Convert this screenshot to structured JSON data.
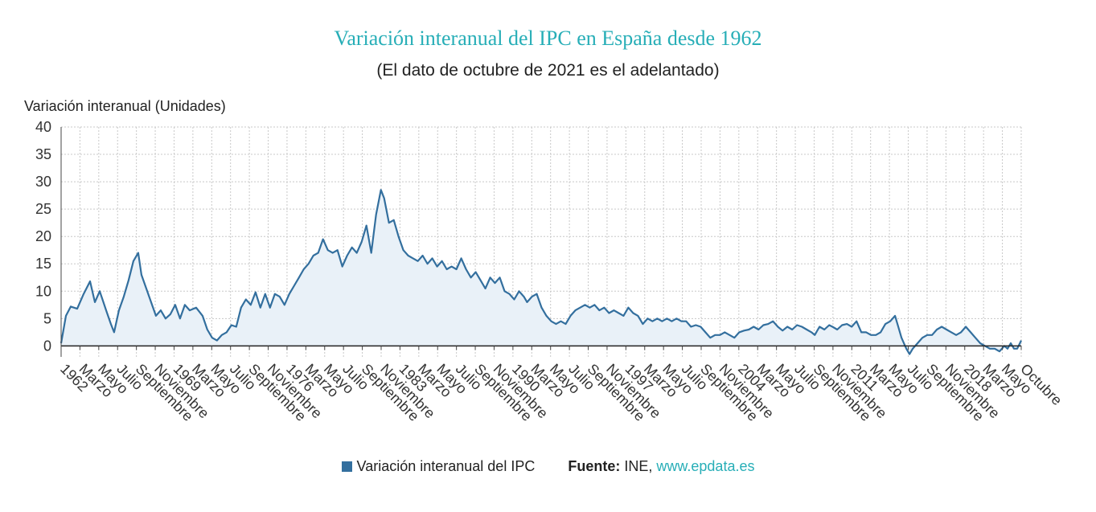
{
  "title": "Variación interanual del IPC en España desde 1962",
  "subtitle": "(El dato de octubre de 2021 es el adelantado)",
  "legend": {
    "series_label": "Variación interanual del IPC",
    "source_prefix": "Fuente:",
    "source_name": "INE,",
    "source_link": "www.epdata.es"
  },
  "colors": {
    "line": "#336f9e",
    "fill": "#e9f1f8",
    "title": "#27aeb7",
    "link": "#27aeb7",
    "grid": "#c8c8c8"
  },
  "chart_data": {
    "type": "area",
    "ylabel": "Variación interanual (Unidades)",
    "ylim": [
      -2,
      40
    ],
    "yticks": [
      0,
      5,
      10,
      15,
      20,
      25,
      30,
      35,
      40
    ],
    "xlim": [
      1962.0,
      2021.75
    ],
    "grid": true,
    "legend_position": "bottom",
    "xtick_labels": [
      "1962",
      "Marzo",
      "Mayo",
      "Julio",
      "Septiembre",
      "Noviembre",
      "1969",
      "Marzo",
      "Mayo",
      "Julio",
      "Septiembre",
      "Noviembre",
      "1976",
      "Marzo",
      "Mayo",
      "Julio",
      "Septiembre",
      "Noviembre",
      "1983",
      "Marzo",
      "Mayo",
      "Julio",
      "Septiembre",
      "Noviembre",
      "1990",
      "Marzo",
      "Mayo",
      "Julio",
      "Septiembre",
      "Noviembre",
      "1997",
      "Marzo",
      "Mayo",
      "Julio",
      "Septiembre",
      "Noviembre",
      "2004",
      "Marzo",
      "Mayo",
      "Julio",
      "Septiembre",
      "Noviembre",
      "2011",
      "Marzo",
      "Mayo",
      "Julio",
      "Septiembre",
      "Noviembre",
      "2018",
      "Marzo",
      "Mayo",
      "Octubre"
    ],
    "series": [
      {
        "name": "Variación interanual del IPC",
        "points": [
          [
            1962.0,
            0.5
          ],
          [
            1962.3,
            5.5
          ],
          [
            1962.6,
            7.2
          ],
          [
            1963.0,
            6.8
          ],
          [
            1963.4,
            9.5
          ],
          [
            1963.8,
            11.8
          ],
          [
            1964.1,
            8.0
          ],
          [
            1964.4,
            10.0
          ],
          [
            1964.8,
            6.5
          ],
          [
            1965.1,
            4.0
          ],
          [
            1965.3,
            2.5
          ],
          [
            1965.6,
            6.5
          ],
          [
            1965.9,
            9.0
          ],
          [
            1966.2,
            12.0
          ],
          [
            1966.5,
            15.5
          ],
          [
            1966.8,
            17.0
          ],
          [
            1967.0,
            13.0
          ],
          [
            1967.3,
            10.5
          ],
          [
            1967.6,
            8.0
          ],
          [
            1967.9,
            5.5
          ],
          [
            1968.2,
            6.5
          ],
          [
            1968.5,
            5.0
          ],
          [
            1968.8,
            5.8
          ],
          [
            1969.1,
            7.5
          ],
          [
            1969.4,
            5.0
          ],
          [
            1969.7,
            7.5
          ],
          [
            1970.0,
            6.5
          ],
          [
            1970.4,
            7.0
          ],
          [
            1970.8,
            5.5
          ],
          [
            1971.1,
            3.0
          ],
          [
            1971.4,
            1.5
          ],
          [
            1971.7,
            1.0
          ],
          [
            1972.0,
            2.0
          ],
          [
            1972.3,
            2.5
          ],
          [
            1972.6,
            3.8
          ],
          [
            1972.9,
            3.5
          ],
          [
            1973.2,
            7.0
          ],
          [
            1973.5,
            8.5
          ],
          [
            1973.8,
            7.5
          ],
          [
            1974.1,
            9.8
          ],
          [
            1974.4,
            7.0
          ],
          [
            1974.7,
            9.5
          ],
          [
            1975.0,
            7.0
          ],
          [
            1975.3,
            9.5
          ],
          [
            1975.6,
            9.0
          ],
          [
            1975.9,
            7.5
          ],
          [
            1976.2,
            9.5
          ],
          [
            1976.5,
            11.0
          ],
          [
            1976.8,
            12.5
          ],
          [
            1977.1,
            14.0
          ],
          [
            1977.4,
            15.0
          ],
          [
            1977.7,
            16.5
          ],
          [
            1978.0,
            17.0
          ],
          [
            1978.3,
            19.5
          ],
          [
            1978.6,
            17.5
          ],
          [
            1978.9,
            17.0
          ],
          [
            1979.2,
            17.5
          ],
          [
            1979.5,
            14.5
          ],
          [
            1979.8,
            16.5
          ],
          [
            1980.1,
            18.0
          ],
          [
            1980.4,
            17.0
          ],
          [
            1980.7,
            19.0
          ],
          [
            1981.0,
            22.0
          ],
          [
            1981.3,
            17.0
          ],
          [
            1981.6,
            24.0
          ],
          [
            1981.9,
            28.5
          ],
          [
            1982.1,
            27.0
          ],
          [
            1982.4,
            22.5
          ],
          [
            1982.7,
            23.0
          ],
          [
            1983.0,
            20.0
          ],
          [
            1983.3,
            17.5
          ],
          [
            1983.6,
            16.5
          ],
          [
            1983.9,
            16.0
          ],
          [
            1984.2,
            15.5
          ],
          [
            1984.5,
            16.5
          ],
          [
            1984.8,
            15.0
          ],
          [
            1985.1,
            16.0
          ],
          [
            1985.4,
            14.5
          ],
          [
            1985.7,
            15.5
          ],
          [
            1986.0,
            14.0
          ],
          [
            1986.3,
            14.5
          ],
          [
            1986.6,
            14.0
          ],
          [
            1986.9,
            16.0
          ],
          [
            1987.2,
            14.0
          ],
          [
            1987.5,
            12.5
          ],
          [
            1987.8,
            13.5
          ],
          [
            1988.1,
            12.0
          ],
          [
            1988.4,
            10.5
          ],
          [
            1988.7,
            12.5
          ],
          [
            1989.0,
            11.5
          ],
          [
            1989.3,
            12.5
          ],
          [
            1989.6,
            10.0
          ],
          [
            1989.9,
            9.5
          ],
          [
            1990.2,
            8.5
          ],
          [
            1990.5,
            10.0
          ],
          [
            1990.8,
            9.0
          ],
          [
            1991.0,
            8.0
          ],
          [
            1991.3,
            9.0
          ],
          [
            1991.6,
            9.5
          ],
          [
            1991.9,
            7.0
          ],
          [
            1992.2,
            5.5
          ],
          [
            1992.5,
            4.5
          ],
          [
            1992.8,
            4.0
          ],
          [
            1993.1,
            4.5
          ],
          [
            1993.4,
            4.0
          ],
          [
            1993.7,
            5.5
          ],
          [
            1994.0,
            6.5
          ],
          [
            1994.3,
            7.0
          ],
          [
            1994.6,
            7.5
          ],
          [
            1994.9,
            7.0
          ],
          [
            1995.2,
            7.5
          ],
          [
            1995.5,
            6.5
          ],
          [
            1995.8,
            7.0
          ],
          [
            1996.1,
            6.0
          ],
          [
            1996.4,
            6.5
          ],
          [
            1996.7,
            6.0
          ],
          [
            1997.0,
            5.5
          ],
          [
            1997.3,
            7.0
          ],
          [
            1997.6,
            6.0
          ],
          [
            1997.9,
            5.5
          ],
          [
            1998.2,
            4.0
          ],
          [
            1998.5,
            5.0
          ],
          [
            1998.8,
            4.5
          ],
          [
            1999.1,
            5.0
          ],
          [
            1999.4,
            4.5
          ],
          [
            1999.7,
            5.0
          ],
          [
            2000.0,
            4.5
          ],
          [
            2000.3,
            5.0
          ],
          [
            2000.6,
            4.5
          ],
          [
            2000.9,
            4.5
          ],
          [
            2001.2,
            3.5
          ],
          [
            2001.5,
            3.8
          ],
          [
            2001.8,
            3.5
          ],
          [
            2002.1,
            2.5
          ],
          [
            2002.4,
            1.5
          ],
          [
            2002.7,
            2.0
          ],
          [
            2003.0,
            2.0
          ],
          [
            2003.3,
            2.5
          ],
          [
            2003.6,
            2.0
          ],
          [
            2003.9,
            1.5
          ],
          [
            2004.2,
            2.5
          ],
          [
            2004.5,
            2.8
          ],
          [
            2004.8,
            3.0
          ],
          [
            2005.1,
            3.5
          ],
          [
            2005.4,
            3.0
          ],
          [
            2005.7,
            3.8
          ],
          [
            2006.0,
            4.0
          ],
          [
            2006.3,
            4.5
          ],
          [
            2006.6,
            3.5
          ],
          [
            2006.9,
            2.8
          ],
          [
            2007.2,
            3.5
          ],
          [
            2007.5,
            3.0
          ],
          [
            2007.8,
            3.8
          ],
          [
            2008.1,
            3.5
          ],
          [
            2008.4,
            3.0
          ],
          [
            2008.7,
            2.5
          ],
          [
            2008.9,
            2.0
          ],
          [
            2009.2,
            3.5
          ],
          [
            2009.5,
            3.0
          ],
          [
            2009.8,
            3.8
          ],
          [
            2010.0,
            3.5
          ],
          [
            2010.3,
            3.0
          ],
          [
            2010.6,
            3.8
          ],
          [
            2010.9,
            4.0
          ],
          [
            2011.2,
            3.5
          ],
          [
            2011.5,
            4.5
          ],
          [
            2011.8,
            2.5
          ],
          [
            2012.1,
            2.5
          ],
          [
            2012.4,
            2.0
          ],
          [
            2012.7,
            2.0
          ],
          [
            2013.0,
            2.5
          ],
          [
            2013.3,
            4.0
          ],
          [
            2013.6,
            4.5
          ],
          [
            2013.9,
            5.5
          ],
          [
            2014.1,
            3.5
          ],
          [
            2014.3,
            1.5
          ],
          [
            2014.6,
            -0.5
          ],
          [
            2014.8,
            -1.5
          ],
          [
            2015.0,
            -0.5
          ],
          [
            2015.3,
            0.5
          ],
          [
            2015.6,
            1.5
          ],
          [
            2015.9,
            2.0
          ],
          [
            2016.2,
            2.0
          ],
          [
            2016.5,
            3.0
          ],
          [
            2016.8,
            3.5
          ],
          [
            2017.1,
            3.0
          ],
          [
            2017.4,
            2.5
          ],
          [
            2017.7,
            2.0
          ],
          [
            2018.0,
            2.5
          ],
          [
            2018.3,
            3.5
          ],
          [
            2018.6,
            2.5
          ],
          [
            2018.9,
            1.5
          ],
          [
            2019.2,
            0.5
          ],
          [
            2019.5,
            0.0
          ],
          [
            2019.8,
            -0.5
          ],
          [
            2020.1,
            -0.5
          ],
          [
            2020.4,
            -1.0
          ],
          [
            2020.7,
            0.0
          ],
          [
            2020.9,
            -0.5
          ],
          [
            2021.1,
            0.5
          ],
          [
            2021.3,
            -0.5
          ],
          [
            2021.5,
            -0.5
          ],
          [
            2021.75,
            1.0
          ]
        ]
      }
    ]
  }
}
